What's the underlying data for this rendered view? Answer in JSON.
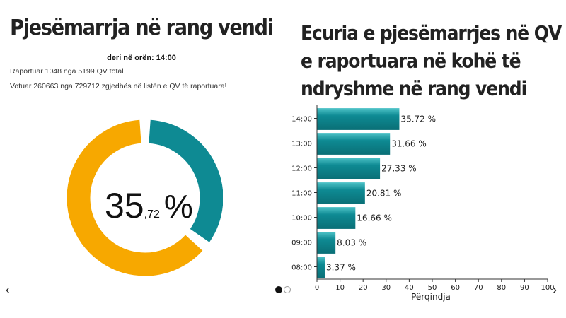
{
  "left_panel": {
    "title": "Pjesëmarrja në rang vendi",
    "subtitle": "deri në orën: 14:00",
    "reported_line": "Raportuar 1048 nga 5199 QV total",
    "voted_line": "Votuar 260663 nga 729712 zgjedhës në listën e QV të raportuara!",
    "gauge": {
      "value": 35.72,
      "int_part": "35",
      "dec_part": ",72",
      "unit": "%",
      "fill_color": "#0e8a93",
      "rest_color": "#f7a800"
    }
  },
  "right_panel": {
    "title": "Ecuria e pjesëmarrjes në QV e raportuara në kohë të ndryshme në rang vendi"
  },
  "chart_data": {
    "type": "bar",
    "orientation": "horizontal",
    "categories": [
      "14:00",
      "13:00",
      "12:00",
      "11:00",
      "10:00",
      "09:00",
      "08:00"
    ],
    "values": [
      35.72,
      31.66,
      27.33,
      20.81,
      16.66,
      8.03,
      3.37
    ],
    "value_labels": [
      "35.72 %",
      "31.66 %",
      "27.33 %",
      "20.81 %",
      "16.66 %",
      "8.03 %",
      "3.37 %"
    ],
    "xlabel": "Përqindja",
    "xlim": [
      0,
      100
    ],
    "xticks": [
      0,
      10,
      20,
      30,
      40,
      50,
      60,
      70,
      80,
      90,
      100
    ],
    "bar_color": "#0e8a93",
    "grid": false
  },
  "carousel": {
    "prev_glyph": "‹",
    "next_glyph": "›"
  }
}
